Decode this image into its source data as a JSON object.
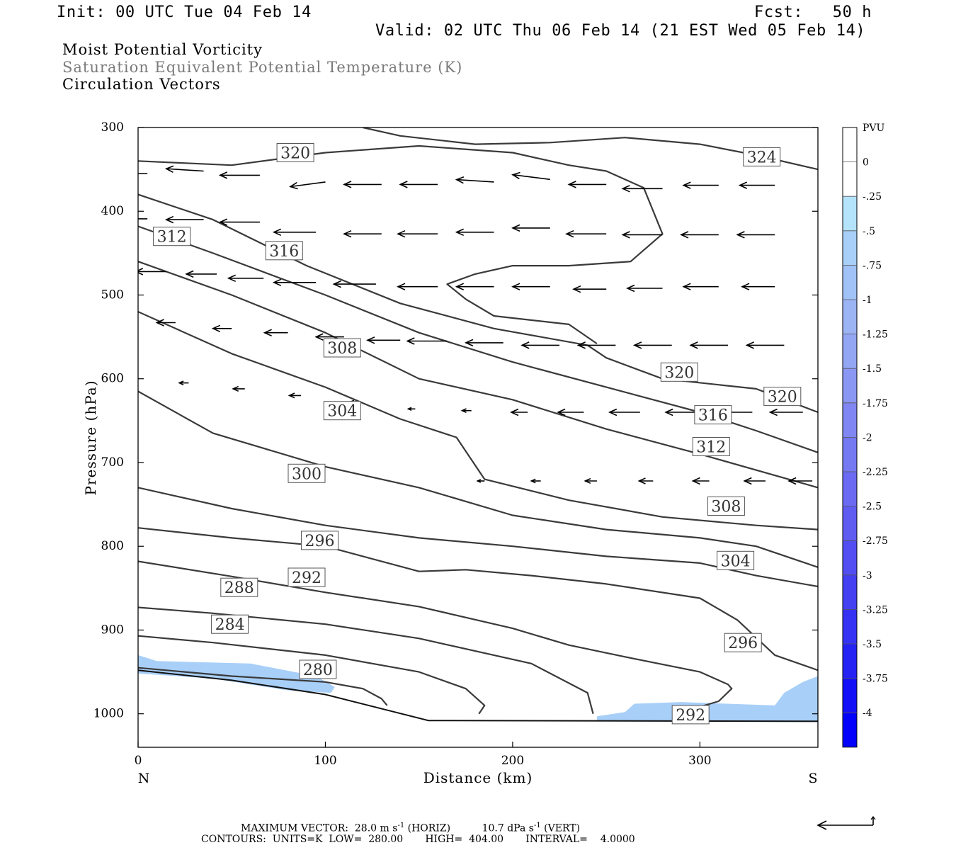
{
  "header": {
    "init": "Init: 00 UTC Tue 04 Feb 14",
    "fcst": "Fcst:   50 h",
    "valid": "Valid: 02 UTC Thu 06 Feb 14 (21 EST Wed 05 Feb 14)"
  },
  "fields": {
    "line1": "Moist Potential Vorticity",
    "line2": "Saturation Equivalent Potential Temperature (K)",
    "line3": "Circulation Vectors"
  },
  "colors": {
    "contour": "#3a3a3a",
    "field2_text": "#7a7a7a",
    "frame": "#000000"
  },
  "footer": {
    "max_vector_label": "MAXIMUM VECTOR:",
    "horiz_value": "28.0 m s",
    "horiz_exp": "-1",
    "horiz_tag": "(HORIZ)",
    "vert_value": "10.7 dPa s",
    "vert_exp": "-1",
    "vert_tag": "(VERT)",
    "contours_line": "CONTOURS:  UNITS=K  LOW=  280.00       HIGH=  404.00       INTERVAL=    4.0000"
  },
  "chart_data": {
    "type": "cross-section contour",
    "xlabel": "Distance (km)",
    "ylabel": "Pressure (hPa)",
    "xlim": [
      0,
      363
    ],
    "ylim": [
      1040,
      300
    ],
    "x_ticks": [
      0,
      100,
      200,
      300
    ],
    "y_ticks": [
      300,
      400,
      500,
      600,
      700,
      800,
      900,
      1000
    ],
    "x_end_labels": {
      "left": "N",
      "right": "S"
    },
    "colorbar": {
      "unit": "PVU",
      "levels": [
        "0",
        "-.25",
        "-.5",
        "-.75",
        "-1",
        "-1.25",
        "-1.5",
        "-1.75",
        "-2",
        "-2.25",
        "-2.5",
        "-2.75",
        "-3",
        "-3.25",
        "-3.5",
        "-3.75",
        "-4"
      ],
      "colors": [
        "#ffffff",
        "#ffffff",
        "#b4e4fb",
        "#a8cff8",
        "#a1c2f6",
        "#9cb3f4",
        "#93a6f4",
        "#8a97f3",
        "#8087f2",
        "#7579f2",
        "#6b6af2",
        "#5f5cf2",
        "#524ef2",
        "#4440f2",
        "#3532f3",
        "#2522f4",
        "#1310f7",
        "#0202fa"
      ]
    },
    "contour_lines": [
      {
        "label": "280",
        "points": [
          [
            0,
            945
          ],
          [
            50,
            955
          ],
          [
            100,
            962
          ],
          [
            120,
            970
          ],
          [
            130,
            982
          ],
          [
            133,
            990
          ]
        ]
      },
      {
        "label": "284",
        "points": [
          [
            0,
            907
          ],
          [
            40,
            915
          ],
          [
            100,
            930
          ],
          [
            150,
            950
          ],
          [
            175,
            970
          ],
          [
            185,
            990
          ],
          [
            182,
            1000
          ]
        ]
      },
      {
        "label": "288",
        "points": [
          [
            0,
            873
          ],
          [
            40,
            880
          ],
          [
            100,
            893
          ],
          [
            150,
            910
          ],
          [
            210,
            940
          ],
          [
            240,
            975
          ],
          [
            243,
            1000
          ]
        ]
      },
      {
        "label": "292",
        "points": [
          [
            0,
            818
          ],
          [
            50,
            836
          ],
          [
            100,
            855
          ],
          [
            150,
            872
          ],
          [
            200,
            898
          ],
          [
            230,
            918
          ],
          [
            260,
            932
          ],
          [
            300,
            950
          ],
          [
            315,
            965
          ],
          [
            317,
            970
          ],
          [
            310,
            985
          ],
          [
            295,
            995
          ]
        ]
      },
      {
        "label": "296",
        "points": [
          [
            0,
            778
          ],
          [
            50,
            790
          ],
          [
            100,
            800
          ],
          [
            150,
            830
          ],
          [
            175,
            828
          ],
          [
            210,
            835
          ],
          [
            250,
            845
          ],
          [
            300,
            862
          ],
          [
            320,
            888
          ],
          [
            340,
            930
          ],
          [
            363,
            948
          ]
        ]
      },
      {
        "label": "300",
        "points": [
          [
            0,
            730
          ],
          [
            50,
            755
          ],
          [
            100,
            775
          ],
          [
            150,
            790
          ],
          [
            200,
            800
          ],
          [
            250,
            812
          ],
          [
            300,
            820
          ],
          [
            330,
            835
          ],
          [
            363,
            848
          ]
        ]
      },
      {
        "label": "304",
        "points": [
          [
            0,
            615
          ],
          [
            40,
            665
          ],
          [
            100,
            705
          ],
          [
            150,
            730
          ],
          [
            200,
            763
          ],
          [
            250,
            780
          ],
          [
            300,
            790
          ],
          [
            330,
            800
          ],
          [
            363,
            825
          ]
        ]
      },
      {
        "label": "308",
        "points": [
          [
            0,
            520
          ],
          [
            50,
            570
          ],
          [
            100,
            610
          ],
          [
            140,
            648
          ],
          [
            170,
            670
          ],
          [
            185,
            720
          ],
          [
            230,
            745
          ],
          [
            280,
            765
          ],
          [
            330,
            775
          ],
          [
            363,
            780
          ]
        ]
      },
      {
        "label": "312",
        "points": [
          [
            0,
            460
          ],
          [
            50,
            500
          ],
          [
            100,
            545
          ],
          [
            150,
            600
          ],
          [
            200,
            625
          ],
          [
            250,
            660
          ],
          [
            300,
            690
          ],
          [
            363,
            730
          ]
        ]
      },
      {
        "label": "316",
        "points": [
          [
            0,
            418
          ],
          [
            40,
            450
          ],
          [
            100,
            500
          ],
          [
            150,
            545
          ],
          [
            200,
            580
          ],
          [
            250,
            610
          ],
          [
            300,
            640
          ],
          [
            330,
            662
          ],
          [
            363,
            688
          ]
        ]
      },
      {
        "label": "320",
        "points": [
          [
            0,
            380
          ],
          [
            40,
            410
          ],
          [
            90,
            465
          ],
          [
            140,
            510
          ],
          [
            190,
            540
          ],
          [
            240,
            560
          ],
          [
            250,
            575
          ],
          [
            280,
            600
          ],
          [
            330,
            612
          ],
          [
            363,
            640
          ]
        ]
      },
      {
        "label": "320",
        "points": [
          [
            0,
            340
          ],
          [
            50,
            345
          ],
          [
            100,
            330
          ],
          [
            150,
            322
          ],
          [
            200,
            330
          ],
          [
            230,
            345
          ],
          [
            250,
            352
          ],
          [
            270,
            372
          ],
          [
            280,
            427
          ],
          [
            263,
            460
          ],
          [
            230,
            465
          ],
          [
            200,
            465
          ],
          [
            180,
            475
          ],
          [
            165,
            487
          ],
          [
            175,
            505
          ],
          [
            190,
            525
          ],
          [
            230,
            535
          ],
          [
            245,
            558
          ]
        ]
      },
      {
        "label": "324",
        "points": [
          [
            120,
            300
          ],
          [
            140,
            310
          ],
          [
            180,
            320
          ],
          [
            220,
            318
          ],
          [
            260,
            312
          ],
          [
            300,
            320
          ],
          [
            330,
            333
          ],
          [
            363,
            350
          ]
        ]
      }
    ],
    "contour_label_positions": [
      {
        "label": "320",
        "x": 84,
        "y": 330
      },
      {
        "label": "324",
        "x": 333,
        "y": 335
      },
      {
        "label": "312",
        "x": 18,
        "y": 430
      },
      {
        "label": "316",
        "x": 78,
        "y": 447
      },
      {
        "label": "308",
        "x": 109,
        "y": 563
      },
      {
        "label": "320",
        "x": 289,
        "y": 592
      },
      {
        "label": "320",
        "x": 344,
        "y": 621
      },
      {
        "label": "304",
        "x": 109,
        "y": 638
      },
      {
        "label": "316",
        "x": 307,
        "y": 643
      },
      {
        "label": "312",
        "x": 306,
        "y": 681
      },
      {
        "label": "300",
        "x": 90,
        "y": 713
      },
      {
        "label": "308",
        "x": 314,
        "y": 752
      },
      {
        "label": "296",
        "x": 97,
        "y": 793
      },
      {
        "label": "304",
        "x": 319,
        "y": 817
      },
      {
        "label": "292",
        "x": 90,
        "y": 837
      },
      {
        "label": "288",
        "x": 54,
        "y": 849
      },
      {
        "label": "284",
        "x": 49,
        "y": 893
      },
      {
        "label": "296",
        "x": 323,
        "y": 915
      },
      {
        "label": "280",
        "x": 96,
        "y": 947
      },
      {
        "label": "292",
        "x": 295,
        "y": 1001
      }
    ],
    "ground": [
      [
        0,
        948
      ],
      [
        50,
        960
      ],
      [
        100,
        977
      ],
      [
        155,
        1008
      ],
      [
        363,
        1009
      ]
    ],
    "mpv_shading": [
      {
        "level": "-.5",
        "points": [
          [
            0,
            930
          ],
          [
            10,
            937
          ],
          [
            60,
            940
          ],
          [
            95,
            955
          ],
          [
            105,
            968
          ],
          [
            103,
            975
          ],
          [
            80,
            972
          ],
          [
            40,
            958
          ],
          [
            0,
            952
          ]
        ]
      },
      {
        "level": "-.5",
        "points": [
          [
            245,
            1003
          ],
          [
            260,
            998
          ],
          [
            265,
            988
          ],
          [
            290,
            986
          ],
          [
            340,
            990
          ],
          [
            345,
            975
          ],
          [
            355,
            962
          ],
          [
            363,
            955
          ],
          [
            363,
            1010
          ],
          [
            245,
            1009
          ]
        ]
      }
    ],
    "vectors": [
      {
        "x": 5,
        "p": 355,
        "u": -18,
        "w": 0
      },
      {
        "x": 35,
        "p": 352,
        "u": -16,
        "w": 1
      },
      {
        "x": 65,
        "p": 357,
        "u": -17,
        "w": 0
      },
      {
        "x": 100,
        "p": 365,
        "u": -15,
        "w": -2
      },
      {
        "x": 130,
        "p": 368,
        "u": -16,
        "w": 0
      },
      {
        "x": 160,
        "p": 368,
        "u": -16,
        "w": 0
      },
      {
        "x": 190,
        "p": 365,
        "u": -16,
        "w": 1
      },
      {
        "x": 220,
        "p": 362,
        "u": -16,
        "w": 2
      },
      {
        "x": 250,
        "p": 368,
        "u": -16,
        "w": 0
      },
      {
        "x": 280,
        "p": 373,
        "u": -17,
        "w": 0
      },
      {
        "x": 310,
        "p": 369,
        "u": -15,
        "w": 0
      },
      {
        "x": 340,
        "p": 369,
        "u": -15,
        "w": 0
      },
      {
        "x": 5,
        "p": 409,
        "u": -16,
        "w": 0
      },
      {
        "x": 35,
        "p": 410,
        "u": -16,
        "w": 0
      },
      {
        "x": 65,
        "p": 413,
        "u": -17,
        "w": 0
      },
      {
        "x": 95,
        "p": 425,
        "u": -18,
        "w": 0
      },
      {
        "x": 130,
        "p": 427,
        "u": -16,
        "w": 0
      },
      {
        "x": 160,
        "p": 427,
        "u": -17,
        "w": 0
      },
      {
        "x": 190,
        "p": 425,
        "u": -16,
        "w": 0
      },
      {
        "x": 220,
        "p": 420,
        "u": -16,
        "w": 0
      },
      {
        "x": 250,
        "p": 427,
        "u": -17,
        "w": 0
      },
      {
        "x": 280,
        "p": 428,
        "u": -17,
        "w": 0
      },
      {
        "x": 310,
        "p": 428,
        "u": -16,
        "w": 0
      },
      {
        "x": 340,
        "p": 428,
        "u": -16,
        "w": 0
      },
      {
        "x": 15,
        "p": 472,
        "u": -13,
        "w": 0
      },
      {
        "x": 42,
        "p": 475,
        "u": -13,
        "w": 0
      },
      {
        "x": 67,
        "p": 480,
        "u": -15,
        "w": 0
      },
      {
        "x": 95,
        "p": 485,
        "u": -18,
        "w": 0
      },
      {
        "x": 127,
        "p": 487,
        "u": -18,
        "w": 0
      },
      {
        "x": 160,
        "p": 490,
        "u": -17,
        "w": 0
      },
      {
        "x": 190,
        "p": 490,
        "u": -16,
        "w": 0
      },
      {
        "x": 220,
        "p": 490,
        "u": -16,
        "w": 0
      },
      {
        "x": 250,
        "p": 493,
        "u": -14,
        "w": 0
      },
      {
        "x": 280,
        "p": 492,
        "u": -15,
        "w": 0
      },
      {
        "x": 310,
        "p": 490,
        "u": -15,
        "w": 0
      },
      {
        "x": 340,
        "p": 490,
        "u": -14,
        "w": 0
      },
      {
        "x": 20,
        "p": 533,
        "u": -8,
        "w": 0
      },
      {
        "x": 50,
        "p": 540,
        "u": -8,
        "w": 0
      },
      {
        "x": 80,
        "p": 545,
        "u": -10,
        "w": 0
      },
      {
        "x": 110,
        "p": 550,
        "u": -12,
        "w": 0
      },
      {
        "x": 140,
        "p": 554,
        "u": -14,
        "w": 0
      },
      {
        "x": 165,
        "p": 555,
        "u": -17,
        "w": 0
      },
      {
        "x": 195,
        "p": 557,
        "u": -16,
        "w": 0
      },
      {
        "x": 225,
        "p": 560,
        "u": -16,
        "w": 0
      },
      {
        "x": 255,
        "p": 560,
        "u": -16,
        "w": 0
      },
      {
        "x": 285,
        "p": 560,
        "u": -16,
        "w": 0
      },
      {
        "x": 315,
        "p": 560,
        "u": -16,
        "w": 0
      },
      {
        "x": 345,
        "p": 560,
        "u": -16,
        "w": 0
      },
      {
        "x": 27,
        "p": 605,
        "u": -4,
        "w": 0
      },
      {
        "x": 57,
        "p": 612,
        "u": -5,
        "w": 0
      },
      {
        "x": 87,
        "p": 620,
        "u": -5,
        "w": 0
      },
      {
        "x": 118,
        "p": 628,
        "u": -4,
        "w": 0
      },
      {
        "x": 148,
        "p": 636,
        "u": -3,
        "w": 0
      },
      {
        "x": 178,
        "p": 638,
        "u": -4,
        "w": 0
      },
      {
        "x": 208,
        "p": 640,
        "u": -7,
        "w": 0
      },
      {
        "x": 238,
        "p": 640,
        "u": -11,
        "w": 0
      },
      {
        "x": 268,
        "p": 640,
        "u": -13,
        "w": 0
      },
      {
        "x": 298,
        "p": 640,
        "u": -13,
        "w": 0
      },
      {
        "x": 328,
        "p": 640,
        "u": -14,
        "w": 0
      },
      {
        "x": 355,
        "p": 640,
        "u": -14,
        "w": 0
      },
      {
        "x": 185,
        "p": 722,
        "u": -3,
        "w": 0
      },
      {
        "x": 215,
        "p": 722,
        "u": -4,
        "w": 0
      },
      {
        "x": 245,
        "p": 722,
        "u": -5,
        "w": 0
      },
      {
        "x": 275,
        "p": 722,
        "u": -6,
        "w": 0
      },
      {
        "x": 305,
        "p": 722,
        "u": -7,
        "w": 0
      },
      {
        "x": 335,
        "p": 722,
        "u": -9,
        "w": 0
      },
      {
        "x": 360,
        "p": 722,
        "u": -10,
        "w": 0
      }
    ],
    "reference_vector": {
      "u": -28.0,
      "w": 10.7
    }
  }
}
